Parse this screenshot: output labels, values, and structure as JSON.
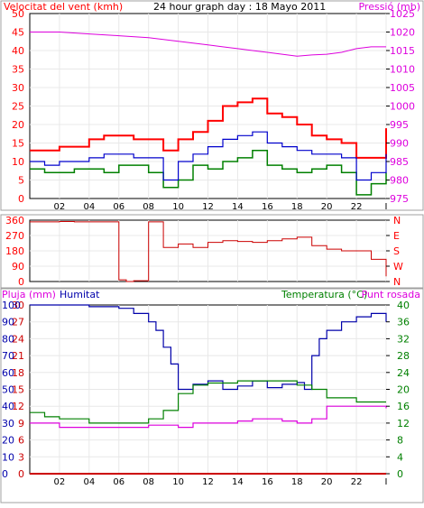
{
  "colors": {
    "wind_gust": "#ff0000",
    "wind_avg": "#0000cc",
    "wind_dir": "#cc0000",
    "pressure": "#dd00dd",
    "temperature": "#008000",
    "dewpoint": "#dd00dd",
    "humidity": "#0000aa",
    "rain": "#cc0000",
    "grid": "#e8e8e8",
    "frame": "#000000"
  },
  "chart_data": [
    {
      "type": "line",
      "title": "24 hour graph day : 18 Mayo 2011",
      "ylabel": "Velocitat del vent (kmh)",
      "y2label": "Pressió (mb)",
      "x_ticks": [
        "02",
        "04",
        "06",
        "08",
        "10",
        "12",
        "14",
        "16",
        "18",
        "20",
        "22",
        "I"
      ],
      "ylim": [
        0,
        50
      ],
      "y_ticks": [
        "0",
        "5",
        "10",
        "15",
        "20",
        "25",
        "30",
        "35",
        "40",
        "45",
        "50"
      ],
      "y2lim": [
        975,
        1025
      ],
      "y2_ticks": [
        "975",
        "980",
        "985",
        "990",
        "995",
        "1000",
        "1005",
        "1010",
        "1015",
        "1020",
        "1025"
      ],
      "grid": true,
      "series": [
        {
          "key": "pressure",
          "axis": "right",
          "x": [
            0,
            2,
            4,
            6,
            8,
            9,
            10,
            11,
            12,
            13,
            14,
            15,
            16,
            17,
            18,
            19,
            20,
            21,
            22,
            23,
            24
          ],
          "values": [
            1020,
            1020,
            1019.5,
            1019,
            1018.5,
            1018,
            1017.5,
            1017,
            1016.5,
            1016,
            1015.5,
            1015,
            1014.5,
            1014,
            1013.5,
            1013.8,
            1014,
            1014.5,
            1015.5,
            1016,
            1016
          ]
        },
        {
          "key": "wind_gust",
          "axis": "left",
          "x": [
            0,
            1,
            2,
            3,
            4,
            5,
            6,
            7,
            8,
            9,
            10,
            11,
            12,
            13,
            14,
            15,
            16,
            17,
            18,
            19,
            20,
            21,
            22,
            23,
            24
          ],
          "values": [
            13,
            13,
            14,
            14,
            16,
            17,
            17,
            16,
            16,
            13,
            16,
            18,
            21,
            25,
            26,
            27,
            23,
            22,
            20,
            17,
            16,
            15,
            11,
            11,
            19
          ]
        },
        {
          "key": "wind_avg",
          "axis": "left",
          "x": [
            0,
            1,
            2,
            3,
            4,
            5,
            6,
            7,
            8,
            9,
            10,
            11,
            12,
            13,
            14,
            15,
            16,
            17,
            18,
            19,
            20,
            21,
            22,
            23,
            24
          ],
          "values": [
            10,
            9,
            10,
            10,
            11,
            12,
            12,
            11,
            11,
            5,
            10,
            12,
            14,
            16,
            17,
            18,
            15,
            14,
            13,
            12,
            12,
            11,
            5,
            7,
            12
          ]
        },
        {
          "key": "wind_min",
          "axis": "left",
          "x": [
            0,
            1,
            2,
            3,
            4,
            5,
            6,
            7,
            8,
            9,
            10,
            11,
            12,
            13,
            14,
            15,
            16,
            17,
            18,
            19,
            20,
            21,
            22,
            23,
            24
          ],
          "values": [
            8,
            7,
            7,
            8,
            8,
            7,
            9,
            9,
            7,
            3,
            5,
            9,
            8,
            10,
            11,
            13,
            9,
            8,
            7,
            8,
            9,
            7,
            1,
            4,
            7
          ]
        }
      ]
    },
    {
      "type": "line",
      "title": "",
      "ylim": [
        0,
        360
      ],
      "y_ticks": [
        "0",
        "90",
        "180",
        "270",
        "360"
      ],
      "y2_ticks": [
        "N",
        "W",
        "S",
        "E",
        "N"
      ],
      "grid": true,
      "series": [
        {
          "key": "wind_dir",
          "axis": "left",
          "x": [
            0,
            1,
            2,
            3,
            4,
            5,
            6,
            6.5,
            7,
            8,
            9,
            10,
            11,
            12,
            13,
            14,
            15,
            16,
            17,
            18,
            19,
            20,
            21,
            22,
            23,
            24
          ],
          "values": [
            350,
            350,
            352,
            350,
            350,
            350,
            10,
            0,
            5,
            350,
            200,
            220,
            200,
            230,
            240,
            235,
            230,
            240,
            250,
            260,
            210,
            190,
            180,
            180,
            130,
            30
          ]
        }
      ]
    },
    {
      "type": "line",
      "ylabel": "Pluja (mm)",
      "y1b_label": "Humitat",
      "y2label": "Temperatura (°C)",
      "y2b_label": "Punt rosada",
      "x_ticks": [
        "02",
        "04",
        "06",
        "08",
        "10",
        "12",
        "14",
        "16",
        "18",
        "20",
        "22",
        "I"
      ],
      "ylim": [
        0,
        30
      ],
      "rain_ticks": [
        "0",
        "3",
        "6",
        "9",
        "12",
        "15",
        "18",
        "21",
        "24",
        "27",
        "30"
      ],
      "hum_ticks": [
        "0",
        "10",
        "20",
        "30",
        "40",
        "50",
        "60",
        "70",
        "80",
        "90",
        "100"
      ],
      "y2lim": [
        0,
        40
      ],
      "y2_ticks": [
        "0",
        "4",
        "8",
        "12",
        "16",
        "20",
        "24",
        "28",
        "32",
        "36",
        "40"
      ],
      "grid": true,
      "series": [
        {
          "key": "humidity",
          "axis": "humidity_0_100",
          "x": [
            0,
            2,
            4,
            6,
            7,
            8,
            8.5,
            9,
            9.5,
            10,
            11,
            12,
            13,
            14,
            15,
            16,
            17,
            18,
            18.5,
            19,
            19.5,
            20,
            21,
            22,
            23,
            24
          ],
          "values": [
            100,
            100,
            99,
            98,
            95,
            90,
            85,
            75,
            65,
            50,
            53,
            55,
            50,
            52,
            55,
            51,
            53,
            54,
            50,
            70,
            80,
            85,
            90,
            93,
            95,
            90
          ]
        },
        {
          "key": "temperature",
          "axis": "right",
          "x": [
            0,
            1,
            2,
            4,
            6,
            7,
            8,
            9,
            10,
            11,
            12,
            14,
            16,
            18,
            19,
            20,
            22,
            24
          ],
          "values": [
            14.5,
            13.5,
            13,
            12,
            12,
            12,
            13,
            15,
            19,
            21,
            21.5,
            22,
            22,
            21,
            20,
            18,
            17,
            17
          ]
        },
        {
          "key": "dewpoint",
          "axis": "right",
          "x": [
            0,
            2,
            4,
            6,
            7,
            8,
            9,
            10,
            11,
            12,
            13,
            14,
            15,
            16,
            17,
            18,
            19,
            20,
            21,
            22,
            23,
            24
          ],
          "values": [
            12,
            11,
            11,
            11,
            11,
            11.5,
            11.5,
            11,
            12,
            12,
            12,
            12.5,
            13,
            13,
            12.5,
            12,
            13,
            16,
            16,
            16,
            16,
            15.5
          ]
        },
        {
          "key": "rain",
          "axis": "left",
          "x": [
            0,
            24
          ],
          "values": [
            0,
            0
          ]
        }
      ]
    }
  ]
}
